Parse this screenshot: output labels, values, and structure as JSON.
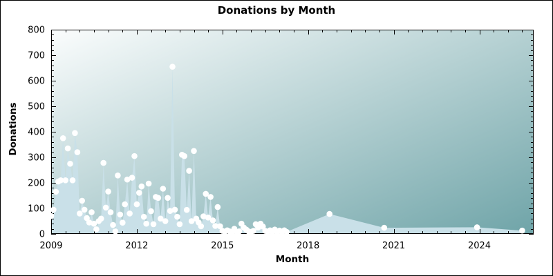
{
  "chart_data": {
    "type": "area",
    "title": "Donations by Month",
    "xlabel": "Month",
    "ylabel": "Donations",
    "ylim": [
      0,
      800
    ],
    "y_major_step": 100,
    "y_minor_step": 20,
    "x_major_tick_years": [
      2009,
      2012,
      2015,
      2018,
      2021,
      2024
    ],
    "x_minor_tick_interval_years": 0.5,
    "grid": false,
    "legend": "none",
    "monthly_series": {
      "start_month": "2009-01",
      "values": [
        70,
        95,
        165,
        205,
        210,
        375,
        210,
        335,
        275,
        210,
        395,
        320,
        80,
        130,
        95,
        62,
        45,
        85,
        40,
        18,
        50,
        60,
        278,
        103,
        166,
        85,
        35,
        10,
        229,
        76,
        44,
        116,
        213,
        80,
        220,
        305,
        116,
        161,
        186,
        67,
        40,
        197,
        89,
        38,
        145,
        141,
        60,
        177,
        50,
        141,
        90,
        655,
        95,
        67,
        38,
        310,
        305,
        94,
        247,
        50,
        325,
        60,
        45,
        30,
        69,
        157,
        64,
        145,
        53,
        31,
        105,
        30,
        12,
        8,
        14,
        10,
        6,
        20,
        8,
        10,
        40,
        25,
        17,
        10,
        8,
        12,
        38,
        25,
        40,
        29,
        12,
        8,
        14,
        6,
        17,
        8,
        13,
        6,
        14,
        8
      ]
    },
    "sparse_points": [
      {
        "month": "2018-10",
        "value": 78
      },
      {
        "month": "2020-09",
        "value": 24
      },
      {
        "month": "2023-12",
        "value": 26
      },
      {
        "month": "2025-07",
        "value": 13
      }
    ],
    "colors": {
      "area_fill": "#c9e0e8",
      "marker_fill": "#ffffff",
      "plot_gradient_top_left": "#fbfdfd",
      "plot_gradient_bottom_right": "#6fa4a8",
      "axis": "#000000",
      "text": "#000000",
      "outer_background": "#ffffff"
    }
  }
}
